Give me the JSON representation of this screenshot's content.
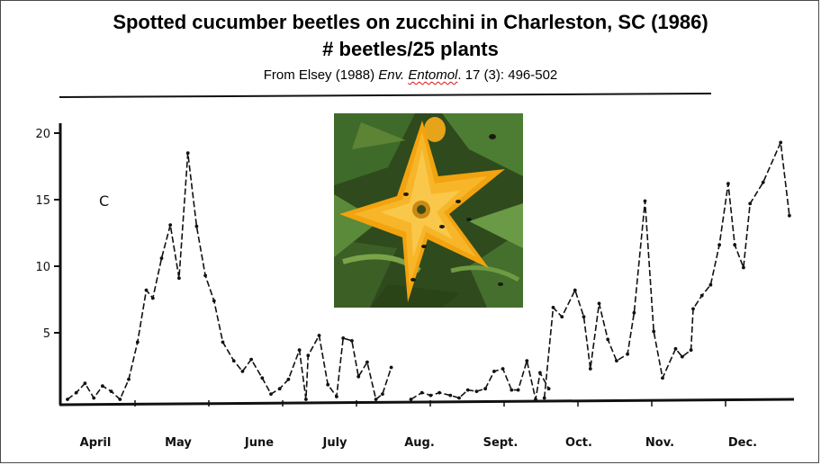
{
  "title_line1": "Spotted cucumber beetles on zucchini in Charleston, SC (1986)",
  "title_line2": "# beetles/25 plants",
  "source": {
    "prefix": "From Elsey (1988) ",
    "journal_a": "Env.",
    "journal_b": "Entomol",
    "suffix": ". 17 (3): 496-502"
  },
  "chart_data": {
    "type": "line",
    "panel_label": "C",
    "title": "Spotted cucumber beetles on zucchini in Charleston, SC (1986)",
    "subtitle": "# beetles/25 plants",
    "xlabel": "",
    "ylabel": "",
    "ylim": [
      0,
      21
    ],
    "yticks": [
      5,
      10,
      15,
      20
    ],
    "grid": false,
    "months": [
      "April",
      "May",
      "June",
      "July",
      "Aug.",
      "Sept.",
      "Oct.",
      "Nov.",
      "Dec."
    ],
    "x_units": "days since Apr 1",
    "series": [
      {
        "name": "",
        "segments": [
          [
            [
              0,
              0
            ],
            [
              4,
              0.5
            ],
            [
              8,
              1.2
            ],
            [
              12,
              0.1
            ],
            [
              16,
              1.0
            ],
            [
              20,
              0.6
            ],
            [
              24,
              0
            ],
            [
              28,
              1.5
            ],
            [
              32,
              4.3
            ],
            [
              36,
              8.2
            ],
            [
              39,
              7.6
            ],
            [
              43,
              10.6
            ],
            [
              47,
              13.1
            ],
            [
              51,
              9.1
            ],
            [
              55,
              18.5
            ],
            [
              59,
              13.0
            ],
            [
              63,
              9.3
            ],
            [
              67,
              7.4
            ],
            [
              71,
              4.3
            ],
            [
              76,
              2.9
            ],
            [
              80,
              2.1
            ],
            [
              84,
              3.0
            ],
            [
              89,
              1.6
            ],
            [
              93,
              0.4
            ],
            [
              97,
              0.8
            ],
            [
              101,
              1.5
            ],
            [
              106,
              3.7
            ],
            [
              109,
              0
            ],
            [
              110,
              3.3
            ],
            [
              115,
              4.8
            ],
            [
              119,
              1.1
            ],
            [
              123,
              0.2
            ],
            [
              126,
              4.6
            ],
            [
              130,
              4.4
            ],
            [
              133,
              1.7
            ],
            [
              137,
              2.8
            ],
            [
              141,
              0
            ],
            [
              144,
              0.4
            ],
            [
              148,
              2.4
            ]
          ],
          [
            [
              157,
              0
            ],
            [
              162,
              0.5
            ],
            [
              166,
              0.3
            ],
            [
              170,
              0.5
            ],
            [
              175,
              0.3
            ],
            [
              179,
              0.1
            ],
            [
              183,
              0.7
            ],
            [
              187,
              0.6
            ],
            [
              191,
              0.8
            ],
            [
              195,
              2.1
            ],
            [
              199,
              2.3
            ],
            [
              203,
              0.7
            ],
            [
              206,
              0.7
            ],
            [
              210,
              2.9
            ],
            [
              214,
              0
            ],
            [
              216,
              2.0
            ],
            [
              220,
              0.8
            ]
          ],
          [
            [
              218,
              0.1
            ],
            [
              222,
              6.9
            ],
            [
              226,
              6.2
            ],
            [
              232,
              8.2
            ],
            [
              236,
              6.2
            ],
            [
              239,
              2.3
            ],
            [
              243,
              7.2
            ],
            [
              247,
              4.5
            ],
            [
              251,
              2.9
            ],
            [
              256,
              3.4
            ],
            [
              259,
              6.5
            ],
            [
              264,
              14.9
            ],
            [
              268,
              5.1
            ],
            [
              272,
              1.6
            ],
            [
              278,
              3.8
            ],
            [
              281,
              3.2
            ],
            [
              285,
              3.7
            ],
            [
              286,
              6.8
            ],
            [
              290,
              7.8
            ],
            [
              294,
              8.6
            ],
            [
              298,
              11.6
            ],
            [
              302,
              16.2
            ],
            [
              305,
              11.6
            ],
            [
              309,
              9.9
            ],
            [
              312,
              14.7
            ],
            [
              318,
              16.3
            ],
            [
              326,
              19.3
            ],
            [
              330,
              13.8
            ]
          ]
        ]
      }
    ]
  }
}
